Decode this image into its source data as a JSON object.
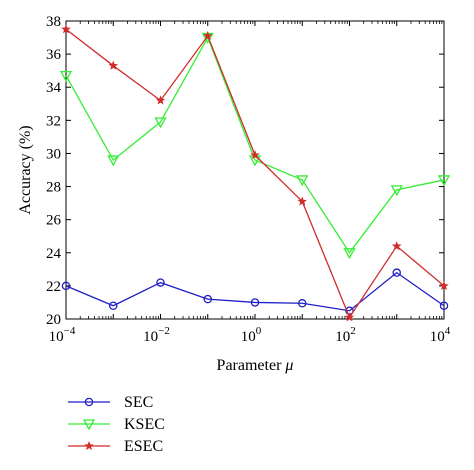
{
  "chart_data": {
    "type": "line",
    "xscale": "log",
    "xlabel": "Parameter μ",
    "ylabel": "Accuracy (%)",
    "x": [
      0.0001,
      0.001,
      0.01,
      0.1,
      1,
      10,
      100,
      1000,
      10000
    ],
    "xlim": [
      0.0001,
      10000
    ],
    "ylim": [
      20,
      38
    ],
    "yticks": [
      20,
      22,
      24,
      26,
      28,
      30,
      32,
      34,
      36,
      38
    ],
    "xticks": [
      {
        "value": 0.0001,
        "base": "10",
        "exp": "−4"
      },
      {
        "value": 0.01,
        "base": "10",
        "exp": "−2"
      },
      {
        "value": 1,
        "base": "10",
        "exp": "0"
      },
      {
        "value": 100,
        "base": "10",
        "exp": "2"
      },
      {
        "value": 10000,
        "base": "10",
        "exp": "4"
      }
    ],
    "grid": false,
    "legend_position": "below",
    "series": [
      {
        "name": "SEC",
        "color": "#1f1fc8",
        "marker": "circle",
        "values": [
          22.0,
          20.8,
          22.2,
          21.2,
          21.0,
          20.95,
          20.5,
          22.8,
          20.8
        ]
      },
      {
        "name": "KSEC",
        "color": "#33ee33",
        "marker": "triangle-down",
        "values": [
          34.7,
          29.6,
          31.9,
          37.0,
          29.6,
          28.4,
          24.0,
          27.8,
          28.4
        ]
      },
      {
        "name": "ESEC",
        "color": "#d22b2b",
        "marker": "star",
        "values": [
          37.5,
          35.3,
          33.2,
          37.1,
          29.9,
          27.1,
          20.1,
          24.4,
          22.0
        ]
      }
    ]
  }
}
